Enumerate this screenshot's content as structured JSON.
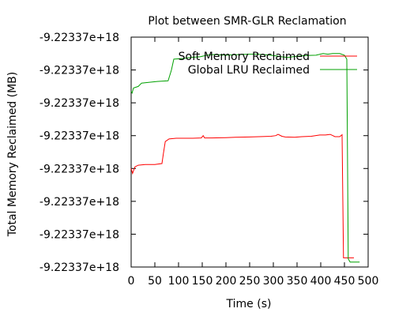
{
  "chart_data": {
    "type": "line",
    "title": "Plot between SMR-GLR Reclamation",
    "xlabel": "Time (s)",
    "ylabel": "Total Memory Reclaimed (MB)",
    "xlim": [
      0,
      500
    ],
    "x_ticks": [
      "0",
      "50",
      "100",
      "150",
      "200",
      "250",
      "300",
      "350",
      "400",
      "450",
      "500"
    ],
    "x_tick_values": [
      0,
      50,
      100,
      150,
      200,
      250,
      300,
      350,
      400,
      450,
      500
    ],
    "y_ticks": [
      "-9.22337e+18",
      "-9.22337e+18",
      "-9.22337e+18",
      "-9.22337e+18",
      "-9.22337e+18",
      "-9.22337e+18",
      "-9.22337e+18",
      "-9.22337e+18"
    ],
    "y_tick_levels": [
      0,
      1,
      2,
      3,
      4,
      5,
      6,
      7
    ],
    "y_range_levels": [
      0,
      7
    ],
    "grid": false,
    "legend_position": "top-right",
    "series": [
      {
        "name": "Soft Memory Reclaimed",
        "color": "#ff0000",
        "points": [
          [
            0,
            3.0
          ],
          [
            3,
            2.85
          ],
          [
            8,
            3.05
          ],
          [
            15,
            3.1
          ],
          [
            30,
            3.12
          ],
          [
            50,
            3.12
          ],
          [
            65,
            3.15
          ],
          [
            68,
            3.45
          ],
          [
            72,
            3.82
          ],
          [
            80,
            3.9
          ],
          [
            95,
            3.92
          ],
          [
            110,
            3.92
          ],
          [
            130,
            3.92
          ],
          [
            148,
            3.93
          ],
          [
            152,
            4.0
          ],
          [
            155,
            3.93
          ],
          [
            170,
            3.93
          ],
          [
            200,
            3.94
          ],
          [
            220,
            3.95
          ],
          [
            250,
            3.96
          ],
          [
            270,
            3.97
          ],
          [
            295,
            3.98
          ],
          [
            305,
            4.0
          ],
          [
            310,
            4.04
          ],
          [
            318,
            3.98
          ],
          [
            325,
            3.96
          ],
          [
            345,
            3.95
          ],
          [
            360,
            3.97
          ],
          [
            380,
            3.98
          ],
          [
            398,
            4.02
          ],
          [
            410,
            4.02
          ],
          [
            420,
            4.04
          ],
          [
            430,
            3.97
          ],
          [
            440,
            3.97
          ],
          [
            445,
            4.03
          ],
          [
            448,
            0.28
          ],
          [
            470,
            0.28
          ]
        ]
      },
      {
        "name": "Global LRU Reclaimed",
        "color": "#00a000",
        "points": [
          [
            0,
            5.35
          ],
          [
            2,
            5.3
          ],
          [
            5,
            5.45
          ],
          [
            15,
            5.5
          ],
          [
            22,
            5.6
          ],
          [
            35,
            5.62
          ],
          [
            55,
            5.65
          ],
          [
            78,
            5.67
          ],
          [
            85,
            6.0
          ],
          [
            90,
            6.33
          ],
          [
            110,
            6.35
          ],
          [
            125,
            6.38
          ],
          [
            145,
            6.4
          ],
          [
            160,
            6.45
          ],
          [
            175,
            6.47
          ],
          [
            200,
            6.45
          ],
          [
            230,
            6.47
          ],
          [
            250,
            6.48
          ],
          [
            265,
            6.48
          ],
          [
            285,
            6.46
          ],
          [
            300,
            6.44
          ],
          [
            318,
            6.4
          ],
          [
            330,
            6.38
          ],
          [
            350,
            6.42
          ],
          [
            370,
            6.44
          ],
          [
            390,
            6.45
          ],
          [
            405,
            6.5
          ],
          [
            415,
            6.48
          ],
          [
            425,
            6.5
          ],
          [
            440,
            6.5
          ],
          [
            450,
            6.45
          ],
          [
            455,
            6.33
          ],
          [
            458,
            0.25
          ],
          [
            462,
            0.15
          ],
          [
            472,
            0.15
          ],
          [
            482,
            0.15
          ]
        ]
      }
    ]
  }
}
